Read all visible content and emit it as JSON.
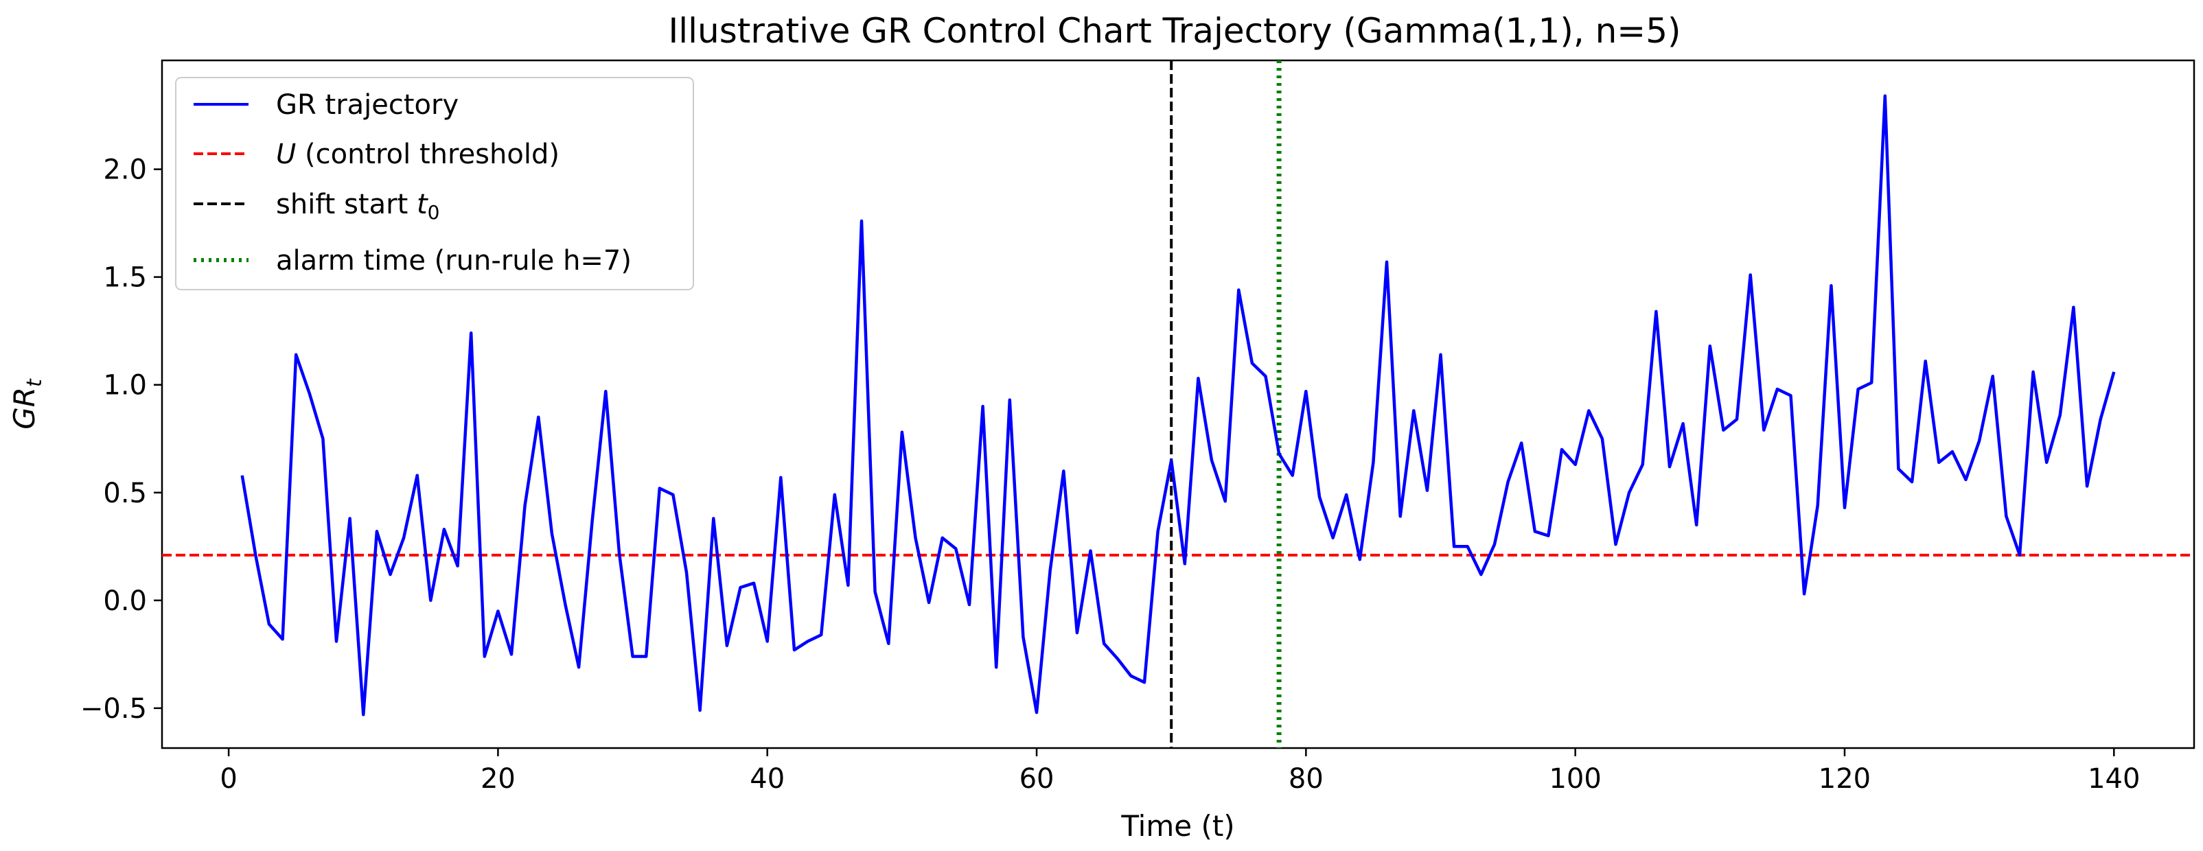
{
  "chart_data": {
    "type": "line",
    "title": "Illustrative GR Control Chart Trajectory (Gamma(1,1), n=5)",
    "xlabel": "Time (t)",
    "ylabel": {
      "base": "GR",
      "subscript": "t"
    },
    "xlim": [
      -4.95,
      145.95
    ],
    "ylim": [
      -0.685,
      2.505
    ],
    "xticks": [
      0,
      20,
      40,
      60,
      80,
      100,
      120,
      140
    ],
    "xtick_labels": [
      "0",
      "20",
      "40",
      "60",
      "80",
      "100",
      "120",
      "140"
    ],
    "yticks": [
      -0.5,
      0.0,
      0.5,
      1.0,
      1.5,
      2.0
    ],
    "ytick_labels": [
      "−0.5",
      "0.0",
      "0.5",
      "1.0",
      "1.5",
      "2.0"
    ],
    "grid": false,
    "legend_position": "top-left",
    "series": [
      {
        "name": "GR trajectory",
        "color": "#0000ff",
        "style": "solid",
        "x": [
          1,
          2,
          3,
          4,
          5,
          6,
          7,
          8,
          9,
          10,
          11,
          12,
          13,
          14,
          15,
          16,
          17,
          18,
          19,
          20,
          21,
          22,
          23,
          24,
          25,
          26,
          27,
          28,
          29,
          30,
          31,
          32,
          33,
          34,
          35,
          36,
          37,
          38,
          39,
          40,
          41,
          42,
          43,
          44,
          45,
          46,
          47,
          48,
          49,
          50,
          51,
          52,
          53,
          54,
          55,
          56,
          57,
          58,
          59,
          60,
          61,
          62,
          63,
          64,
          65,
          66,
          67,
          68,
          69,
          70,
          71,
          72,
          73,
          74,
          75,
          76,
          77,
          78,
          79,
          80,
          81,
          82,
          83,
          84,
          85,
          86,
          87,
          88,
          89,
          90,
          91,
          92,
          93,
          94,
          95,
          96,
          97,
          98,
          99,
          100,
          101,
          102,
          103,
          104,
          105,
          106,
          107,
          108,
          109,
          110,
          111,
          112,
          113,
          114,
          115,
          116,
          117,
          118,
          119,
          120,
          121,
          122,
          123,
          124,
          125,
          126,
          127,
          128,
          129,
          130,
          131,
          132,
          133,
          134,
          135,
          136,
          137,
          138,
          139,
          140
        ],
        "y": [
          0.58,
          0.21,
          -0.11,
          -0.18,
          1.14,
          0.96,
          0.75,
          -0.19,
          0.38,
          -0.53,
          0.32,
          0.12,
          0.29,
          0.58,
          0.0,
          0.33,
          0.16,
          1.24,
          -0.26,
          -0.05,
          -0.25,
          0.44,
          0.85,
          0.31,
          -0.02,
          -0.31,
          0.37,
          0.97,
          0.22,
          -0.26,
          -0.26,
          0.52,
          0.49,
          0.13,
          -0.51,
          0.38,
          -0.21,
          0.06,
          0.08,
          -0.19,
          0.57,
          -0.23,
          -0.19,
          -0.16,
          0.49,
          0.07,
          1.76,
          0.04,
          -0.2,
          0.78,
          0.29,
          -0.01,
          0.29,
          0.24,
          -0.02,
          0.9,
          -0.31,
          0.93,
          -0.17,
          -0.52,
          0.14,
          0.6,
          -0.15,
          0.23,
          -0.2,
          -0.27,
          -0.35,
          -0.38,
          0.32,
          0.65,
          0.17,
          1.03,
          0.65,
          0.46,
          1.44,
          1.1,
          1.04,
          0.68,
          0.58,
          0.97,
          0.48,
          0.29,
          0.49,
          0.19,
          0.64,
          1.57,
          0.39,
          0.88,
          0.51,
          1.14,
          0.25,
          0.25,
          0.12,
          0.26,
          0.55,
          0.73,
          0.32,
          0.3,
          0.7,
          0.63,
          0.88,
          0.75,
          0.26,
          0.5,
          0.63,
          1.34,
          0.62,
          0.82,
          0.35,
          1.18,
          0.79,
          0.84,
          1.51,
          0.79,
          0.98,
          0.95,
          0.03,
          0.44,
          1.46,
          0.43,
          0.98,
          1.01,
          2.34,
          0.61,
          0.55,
          1.11,
          0.64,
          0.69,
          0.56,
          0.74,
          1.04,
          0.39,
          0.21,
          1.06,
          0.64,
          0.86,
          1.36,
          0.53,
          0.84,
          1.06
        ]
      }
    ],
    "hlines": [
      {
        "name_italic": "U",
        "name_rest": " (control threshold)",
        "y": 0.21,
        "color": "#ff0000",
        "style": "dashed"
      }
    ],
    "vlines": [
      {
        "name": "shift start ",
        "name_var": "t",
        "name_sub": "0",
        "x": 70,
        "color": "#000000",
        "style": "dashed"
      },
      {
        "name": "alarm time (run-rule h=7)",
        "x": 78,
        "color": "#008000",
        "style": "dotted"
      }
    ]
  }
}
